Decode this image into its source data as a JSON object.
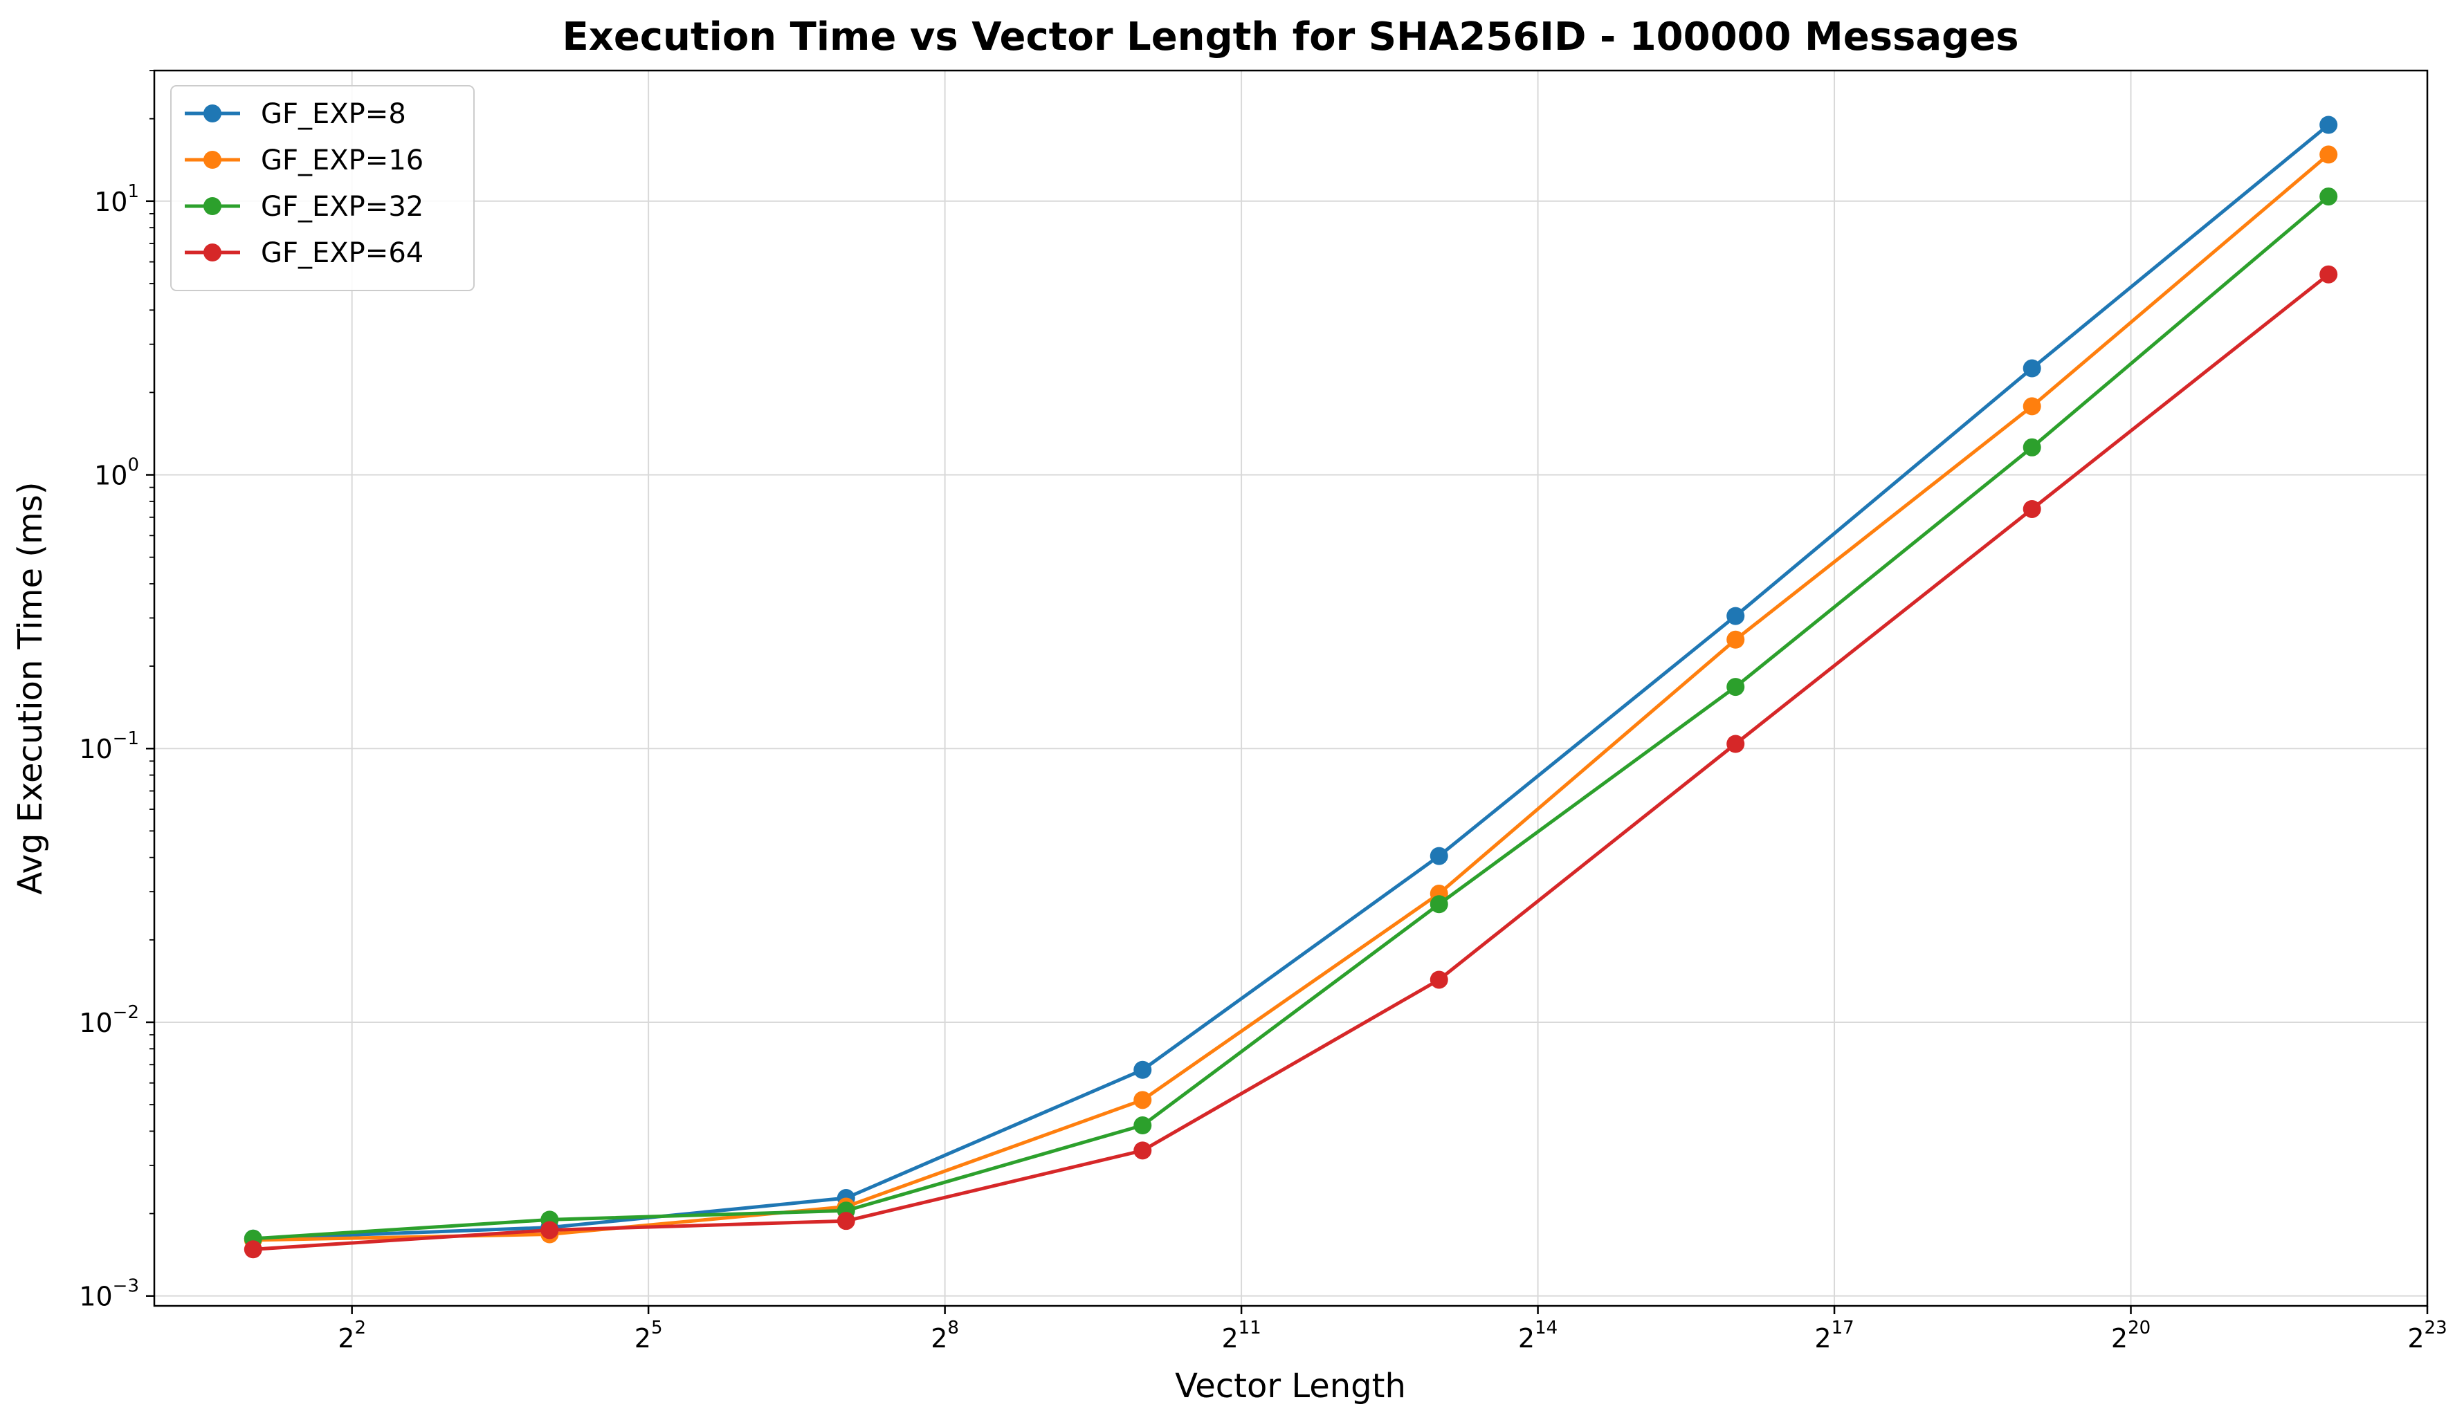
{
  "chart_data": {
    "type": "line",
    "title": "Execution Time vs Vector Length for SHA256ID - 100000 Messages",
    "xlabel": "Vector Length",
    "ylabel": "Avg Execution Time (ms)",
    "x_scale": "log2",
    "y_scale": "log10",
    "xlim": [
      1.0,
      8388608
    ],
    "ylim": [
      0.00092,
      30
    ],
    "grid": true,
    "legend_position": "top-left",
    "x_ticks": [
      {
        "base": "2",
        "exp": "2",
        "value": 4
      },
      {
        "base": "2",
        "exp": "5",
        "value": 32
      },
      {
        "base": "2",
        "exp": "8",
        "value": 256
      },
      {
        "base": "2",
        "exp": "11",
        "value": 2048
      },
      {
        "base": "2",
        "exp": "14",
        "value": 16384
      },
      {
        "base": "2",
        "exp": "17",
        "value": 131072
      },
      {
        "base": "2",
        "exp": "20",
        "value": 1048576
      },
      {
        "base": "2",
        "exp": "23",
        "value": 8388608
      }
    ],
    "y_ticks": [
      {
        "base": "10",
        "exp": "−3",
        "value": 0.001
      },
      {
        "base": "10",
        "exp": "−2",
        "value": 0.01
      },
      {
        "base": "10",
        "exp": "−1",
        "value": 0.1
      },
      {
        "base": "10",
        "exp": "0",
        "value": 1
      },
      {
        "base": "10",
        "exp": "1",
        "value": 10
      }
    ],
    "x": [
      2,
      16,
      128,
      1024,
      8192,
      65536,
      524288,
      4194304
    ],
    "series": [
      {
        "name": "GF_EXP=8",
        "color": "#1f77b4",
        "values": [
          0.00162,
          0.00178,
          0.00228,
          0.0067,
          0.0405,
          0.305,
          2.45,
          19.0
        ]
      },
      {
        "name": "GF_EXP=16",
        "color": "#ff7f0e",
        "values": [
          0.0016,
          0.00168,
          0.00212,
          0.0052,
          0.0295,
          0.25,
          1.78,
          14.8
        ]
      },
      {
        "name": "GF_EXP=32",
        "color": "#2ca02c",
        "values": [
          0.00162,
          0.0019,
          0.00205,
          0.0042,
          0.027,
          0.168,
          1.26,
          10.4
        ]
      },
      {
        "name": "GF_EXP=64",
        "color": "#d62728",
        "values": [
          0.00148,
          0.00174,
          0.00188,
          0.0034,
          0.0143,
          0.104,
          0.75,
          5.4
        ]
      }
    ]
  }
}
